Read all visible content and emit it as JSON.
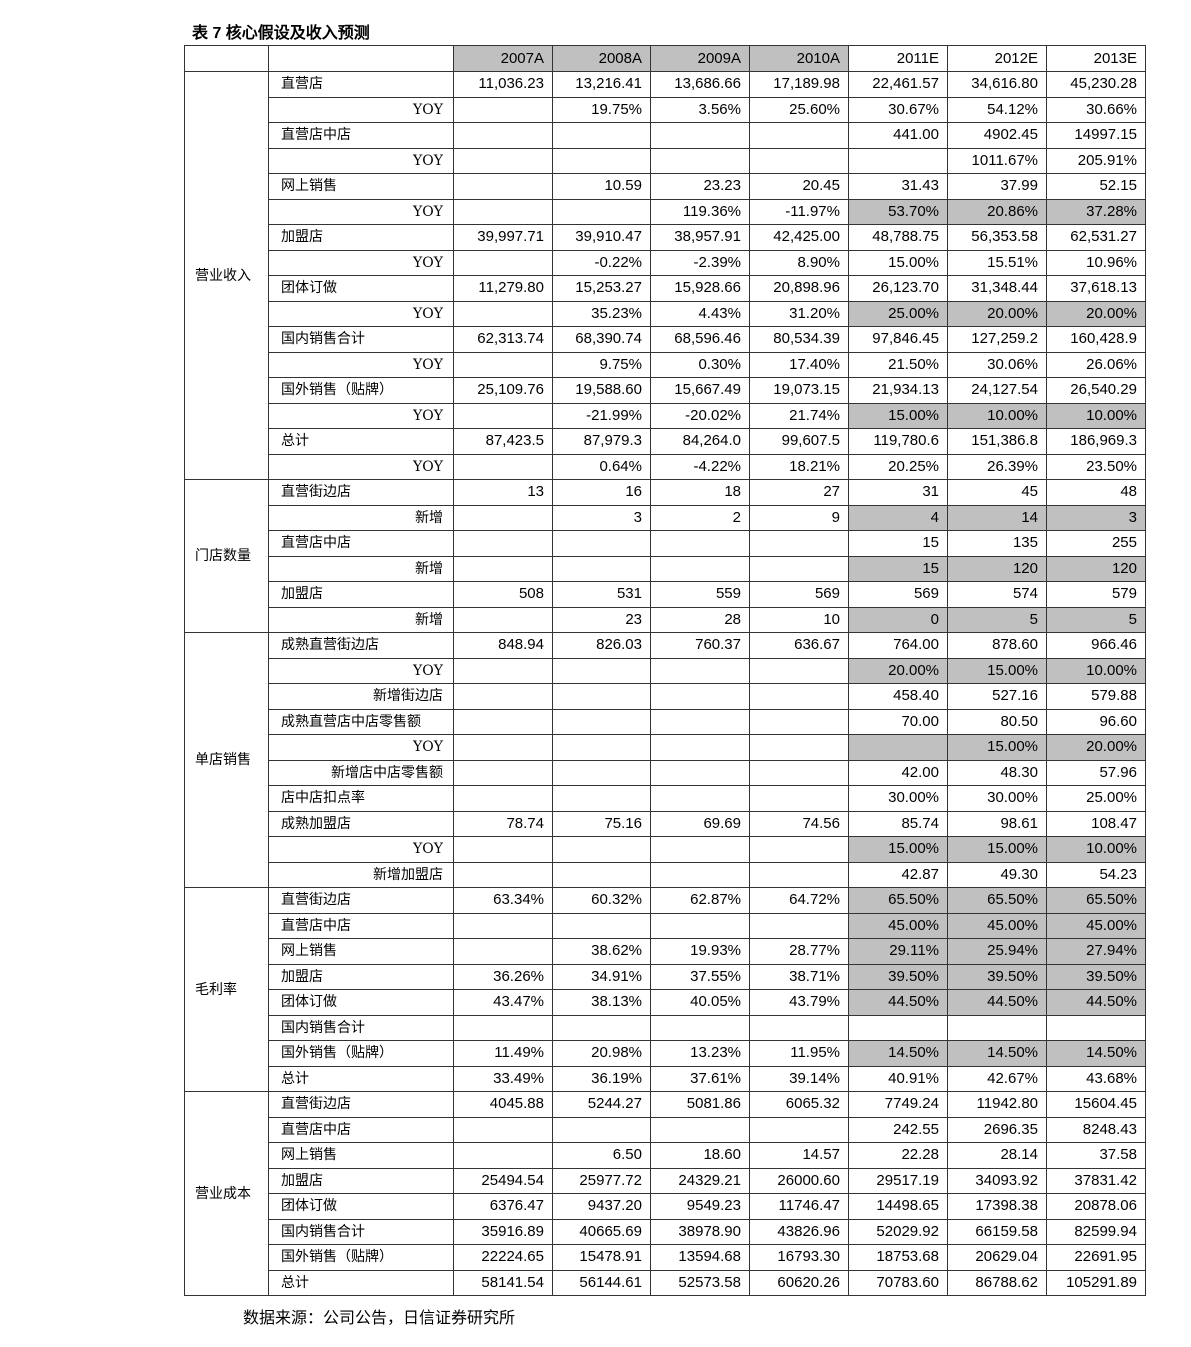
{
  "title": "表 7 核心假设及收入预测",
  "source": "数据来源：公司公告，日信证券研究所",
  "colors": {
    "shade": "#c0c0c0",
    "border": "#333333"
  },
  "columns": [
    "2007A",
    "2008A",
    "2009A",
    "2010A",
    "2011E",
    "2012E",
    "2013E"
  ],
  "header_shaded": [
    true,
    true,
    true,
    true,
    false,
    false,
    false
  ],
  "groups": [
    {
      "label": "营业收入",
      "rows": [
        {
          "label": "直营店",
          "align": "left",
          "shaded": false,
          "values": [
            "11,036.23",
            "13,216.41",
            "13,686.66",
            "17,189.98",
            "22,461.57",
            "34,616.80",
            "45,230.28"
          ]
        },
        {
          "label": "YOY",
          "align": "right",
          "shaded": false,
          "values": [
            "",
            "19.75%",
            "3.56%",
            "25.60%",
            "30.67%",
            "54.12%",
            "30.66%"
          ]
        },
        {
          "label": "直营店中店",
          "align": "left",
          "shaded": false,
          "values": [
            "",
            "",
            "",
            "",
            "441.00",
            "4902.45",
            "14997.15"
          ]
        },
        {
          "label": "YOY",
          "align": "right",
          "shaded": false,
          "values": [
            "",
            "",
            "",
            "",
            "",
            "1011.67%",
            "205.91%"
          ]
        },
        {
          "label": "网上销售",
          "align": "left",
          "shaded": false,
          "values": [
            "",
            "10.59",
            "23.23",
            "20.45",
            "31.43",
            "37.99",
            "52.15"
          ]
        },
        {
          "label": "YOY",
          "align": "right",
          "shaded": true,
          "values": [
            "",
            "",
            "119.36%",
            "-11.97%",
            "53.70%",
            "20.86%",
            "37.28%"
          ]
        },
        {
          "label": "加盟店",
          "align": "left",
          "shaded": false,
          "values": [
            "39,997.71",
            "39,910.47",
            "38,957.91",
            "42,425.00",
            "48,788.75",
            "56,353.58",
            "62,531.27"
          ]
        },
        {
          "label": "YOY",
          "align": "right",
          "shaded": false,
          "values": [
            "",
            "-0.22%",
            "-2.39%",
            "8.90%",
            "15.00%",
            "15.51%",
            "10.96%"
          ]
        },
        {
          "label": "团体订做",
          "align": "left",
          "shaded": false,
          "values": [
            "11,279.80",
            "15,253.27",
            "15,928.66",
            "20,898.96",
            "26,123.70",
            "31,348.44",
            "37,618.13"
          ]
        },
        {
          "label": "YOY",
          "align": "right",
          "shaded": true,
          "values": [
            "",
            "35.23%",
            "4.43%",
            "31.20%",
            "25.00%",
            "20.00%",
            "20.00%"
          ]
        },
        {
          "label": "国内销售合计",
          "align": "left",
          "shaded": false,
          "values": [
            "62,313.74",
            "68,390.74",
            "68,596.46",
            "80,534.39",
            "97,846.45",
            "127,259.2",
            "160,428.9"
          ]
        },
        {
          "label": "YOY",
          "align": "right",
          "shaded": false,
          "values": [
            "",
            "9.75%",
            "0.30%",
            "17.40%",
            "21.50%",
            "30.06%",
            "26.06%"
          ]
        },
        {
          "label": "国外销售（贴牌）",
          "align": "left",
          "shaded": false,
          "values": [
            "25,109.76",
            "19,588.60",
            "15,667.49",
            "19,073.15",
            "21,934.13",
            "24,127.54",
            "26,540.29"
          ]
        },
        {
          "label": "YOY",
          "align": "right",
          "shaded": true,
          "values": [
            "",
            "-21.99%",
            "-20.02%",
            "21.74%",
            "15.00%",
            "10.00%",
            "10.00%"
          ]
        },
        {
          "label": "总计",
          "align": "left",
          "shaded": false,
          "values": [
            "87,423.5",
            "87,979.3",
            "84,264.0",
            "99,607.5",
            "119,780.6",
            "151,386.8",
            "186,969.3"
          ]
        },
        {
          "label": "YOY",
          "align": "right",
          "shaded": false,
          "values": [
            "",
            "0.64%",
            "-4.22%",
            "18.21%",
            "20.25%",
            "26.39%",
            "23.50%"
          ]
        }
      ]
    },
    {
      "label": "门店数量",
      "rows": [
        {
          "label": "直营街边店",
          "align": "left",
          "shaded": false,
          "values": [
            "13",
            "16",
            "18",
            "27",
            "31",
            "45",
            "48"
          ]
        },
        {
          "label": "新增",
          "align": "right",
          "shaded": true,
          "values": [
            "",
            "3",
            "2",
            "9",
            "4",
            "14",
            "3"
          ]
        },
        {
          "label": "直营店中店",
          "align": "left",
          "shaded": false,
          "values": [
            "",
            "",
            "",
            "",
            "15",
            "135",
            "255"
          ]
        },
        {
          "label": "新增",
          "align": "right",
          "shaded": true,
          "values": [
            "",
            "",
            "",
            "",
            "15",
            "120",
            "120"
          ]
        },
        {
          "label": "加盟店",
          "align": "left",
          "shaded": false,
          "values": [
            "508",
            "531",
            "559",
            "569",
            "569",
            "574",
            "579"
          ]
        },
        {
          "label": "新增",
          "align": "right",
          "shaded": true,
          "values": [
            "",
            "23",
            "28",
            "10",
            "0",
            "5",
            "5"
          ]
        }
      ]
    },
    {
      "label": "单店销售",
      "rows": [
        {
          "label": "成熟直营街边店",
          "align": "left",
          "shaded": false,
          "values": [
            "848.94",
            "826.03",
            "760.37",
            "636.67",
            "764.00",
            "878.60",
            "966.46"
          ]
        },
        {
          "label": "YOY",
          "align": "right",
          "shaded": true,
          "values": [
            "",
            "",
            "",
            "",
            "20.00%",
            "15.00%",
            "10.00%"
          ]
        },
        {
          "label": "新增街边店",
          "align": "right",
          "shaded": false,
          "values": [
            "",
            "",
            "",
            "",
            "458.40",
            "527.16",
            "579.88"
          ]
        },
        {
          "label": "成熟直营店中店零售额",
          "align": "left",
          "shaded": false,
          "values": [
            "",
            "",
            "",
            "",
            "70.00",
            "80.50",
            "96.60"
          ]
        },
        {
          "label": "YOY",
          "align": "right",
          "shaded": true,
          "values": [
            "",
            "",
            "",
            "",
            "",
            "15.00%",
            "20.00%"
          ]
        },
        {
          "label": "新增店中店零售额",
          "align": "right",
          "shaded": false,
          "values": [
            "",
            "",
            "",
            "",
            "42.00",
            "48.30",
            "57.96"
          ]
        },
        {
          "label": "店中店扣点率",
          "align": "left",
          "shaded": false,
          "values": [
            "",
            "",
            "",
            "",
            "30.00%",
            "30.00%",
            "25.00%"
          ]
        },
        {
          "label": "成熟加盟店",
          "align": "left",
          "shaded": false,
          "values": [
            "78.74",
            "75.16",
            "69.69",
            "74.56",
            "85.74",
            "98.61",
            "108.47"
          ]
        },
        {
          "label": "YOY",
          "align": "right",
          "shaded": true,
          "values": [
            "",
            "",
            "",
            "",
            "15.00%",
            "15.00%",
            "10.00%"
          ]
        },
        {
          "label": "新增加盟店",
          "align": "right",
          "shaded": false,
          "values": [
            "",
            "",
            "",
            "",
            "42.87",
            "49.30",
            "54.23"
          ]
        }
      ]
    },
    {
      "label": "毛利率",
      "rows": [
        {
          "label": "直营街边店",
          "align": "left",
          "shaded": true,
          "values": [
            "63.34%",
            "60.32%",
            "62.87%",
            "64.72%",
            "65.50%",
            "65.50%",
            "65.50%"
          ]
        },
        {
          "label": "直营店中店",
          "align": "left",
          "shaded": true,
          "values": [
            "",
            "",
            "",
            "",
            "45.00%",
            "45.00%",
            "45.00%"
          ]
        },
        {
          "label": "网上销售",
          "align": "left",
          "shaded": true,
          "values": [
            "",
            "38.62%",
            "19.93%",
            "28.77%",
            "29.11%",
            "25.94%",
            "27.94%"
          ]
        },
        {
          "label": "加盟店",
          "align": "left",
          "shaded": true,
          "values": [
            "36.26%",
            "34.91%",
            "37.55%",
            "38.71%",
            "39.50%",
            "39.50%",
            "39.50%"
          ]
        },
        {
          "label": "团体订做",
          "align": "left",
          "shaded": true,
          "values": [
            "43.47%",
            "38.13%",
            "40.05%",
            "43.79%",
            "44.50%",
            "44.50%",
            "44.50%"
          ]
        },
        {
          "label": "国内销售合计",
          "align": "left",
          "shaded": false,
          "values": [
            "",
            "",
            "",
            "",
            "",
            "",
            ""
          ]
        },
        {
          "label": "国外销售（贴牌）",
          "align": "left",
          "shaded": true,
          "values": [
            "11.49%",
            "20.98%",
            "13.23%",
            "11.95%",
            "14.50%",
            "14.50%",
            "14.50%"
          ]
        },
        {
          "label": "总计",
          "align": "left",
          "shaded": false,
          "values": [
            "33.49%",
            "36.19%",
            "37.61%",
            "39.14%",
            "40.91%",
            "42.67%",
            "43.68%"
          ]
        }
      ]
    },
    {
      "label": "营业成本",
      "rows": [
        {
          "label": "直营街边店",
          "align": "left",
          "shaded": false,
          "values": [
            "4045.88",
            "5244.27",
            "5081.86",
            "6065.32",
            "7749.24",
            "11942.80",
            "15604.45"
          ]
        },
        {
          "label": "直营店中店",
          "align": "left",
          "shaded": false,
          "values": [
            "",
            "",
            "",
            "",
            "242.55",
            "2696.35",
            "8248.43"
          ]
        },
        {
          "label": "网上销售",
          "align": "left",
          "shaded": false,
          "values": [
            "",
            "6.50",
            "18.60",
            "14.57",
            "22.28",
            "28.14",
            "37.58"
          ]
        },
        {
          "label": "加盟店",
          "align": "left",
          "shaded": false,
          "values": [
            "25494.54",
            "25977.72",
            "24329.21",
            "26000.60",
            "29517.19",
            "34093.92",
            "37831.42"
          ]
        },
        {
          "label": "团体订做",
          "align": "left",
          "shaded": false,
          "values": [
            "6376.47",
            "9437.20",
            "9549.23",
            "11746.47",
            "14498.65",
            "17398.38",
            "20878.06"
          ]
        },
        {
          "label": "国内销售合计",
          "align": "left",
          "shaded": false,
          "values": [
            "35916.89",
            "40665.69",
            "38978.90",
            "43826.96",
            "52029.92",
            "66159.58",
            "82599.94"
          ]
        },
        {
          "label": "国外销售（贴牌）",
          "align": "left",
          "shaded": false,
          "values": [
            "22224.65",
            "15478.91",
            "13594.68",
            "16793.30",
            "18753.68",
            "20629.04",
            "22691.95"
          ]
        },
        {
          "label": "总计",
          "align": "left",
          "shaded": false,
          "values": [
            "58141.54",
            "56144.61",
            "52573.58",
            "60620.26",
            "70783.60",
            "86788.62",
            "105291.89"
          ]
        }
      ]
    }
  ]
}
